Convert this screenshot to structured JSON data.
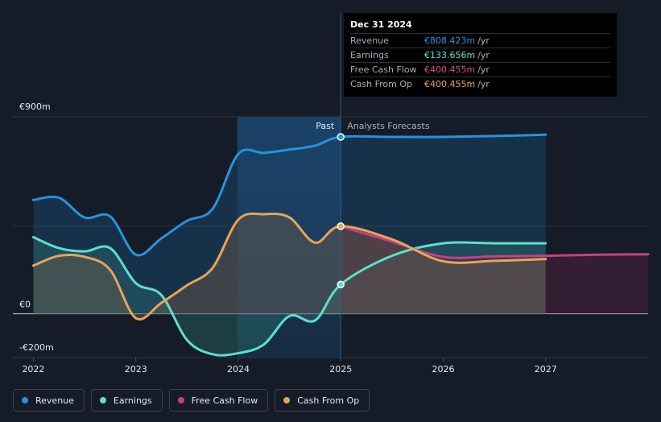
{
  "tooltip": {
    "date": "Dec 31 2024",
    "rows": [
      {
        "label": "Revenue",
        "value": "€808.423m",
        "unit": "/yr",
        "color": "#2394df"
      },
      {
        "label": "Earnings",
        "value": "€133.656m",
        "unit": "/yr",
        "color": "#5ce0cd"
      },
      {
        "label": "Free Cash Flow",
        "value": "€400.455m",
        "unit": "/yr",
        "color": "#c4427e"
      },
      {
        "label": "Cash From Op",
        "value": "€400.455m",
        "unit": "/yr",
        "color": "#e8a35a"
      }
    ]
  },
  "legend": [
    {
      "label": "Revenue",
      "color": "#2394df"
    },
    {
      "label": "Earnings",
      "color": "#5ce0cd"
    },
    {
      "label": "Free Cash Flow",
      "color": "#c4427e"
    },
    {
      "label": "Cash From Op",
      "color": "#e8a35a"
    }
  ],
  "chart_data": {
    "type": "area",
    "title": "",
    "y_labels": [
      {
        "value": 900,
        "text": "€900m"
      },
      {
        "value": 0,
        "text": "€0"
      },
      {
        "value": -200,
        "text": "-€200m"
      }
    ],
    "ylim": [
      -200,
      900
    ],
    "xlim": [
      2021.8,
      2028.0
    ],
    "x_ticks": [
      2022,
      2023,
      2024,
      2025,
      2026,
      2027
    ],
    "past_label": "Past",
    "forecast_label": "Analysts Forecasts",
    "divider_x": 2025.0,
    "highlight_start_x": 2023.99,
    "series": [
      {
        "name": "Revenue",
        "color": "#2394df",
        "points": [
          [
            2022.0,
            520
          ],
          [
            2022.25,
            530
          ],
          [
            2022.5,
            440
          ],
          [
            2022.75,
            445
          ],
          [
            2023.0,
            270
          ],
          [
            2023.25,
            345
          ],
          [
            2023.5,
            425
          ],
          [
            2023.75,
            480
          ],
          [
            2024.0,
            730
          ],
          [
            2024.25,
            735
          ],
          [
            2024.5,
            750
          ],
          [
            2024.75,
            768
          ],
          [
            2025.0,
            808
          ],
          [
            2025.5,
            808
          ],
          [
            2026.0,
            808
          ],
          [
            2026.5,
            812
          ],
          [
            2027.0,
            818
          ]
        ]
      },
      {
        "name": "Earnings",
        "color": "#5ce0cd",
        "points": [
          [
            2022.0,
            350
          ],
          [
            2022.25,
            300
          ],
          [
            2022.5,
            285
          ],
          [
            2022.75,
            300
          ],
          [
            2023.0,
            140
          ],
          [
            2023.25,
            85
          ],
          [
            2023.5,
            -120
          ],
          [
            2023.75,
            -185
          ],
          [
            2024.0,
            -180
          ],
          [
            2024.25,
            -140
          ],
          [
            2024.5,
            -10
          ],
          [
            2024.75,
            -30
          ],
          [
            2025.0,
            134
          ],
          [
            2025.5,
            265
          ],
          [
            2026.0,
            322
          ],
          [
            2026.5,
            322
          ],
          [
            2027.0,
            322
          ]
        ]
      },
      {
        "name": "Free Cash Flow",
        "color": "#c4427e",
        "points": [
          [
            2025.0,
            400
          ],
          [
            2025.5,
            330
          ],
          [
            2026.0,
            260
          ],
          [
            2026.5,
            262
          ],
          [
            2027.0,
            265
          ],
          [
            2027.5,
            270
          ],
          [
            2028.0,
            272
          ]
        ]
      },
      {
        "name": "Cash From Op",
        "color": "#e8a35a",
        "points": [
          [
            2022.0,
            220
          ],
          [
            2022.25,
            265
          ],
          [
            2022.5,
            260
          ],
          [
            2022.75,
            200
          ],
          [
            2023.0,
            -20
          ],
          [
            2023.25,
            50
          ],
          [
            2023.5,
            130
          ],
          [
            2023.75,
            210
          ],
          [
            2024.0,
            430
          ],
          [
            2024.25,
            455
          ],
          [
            2024.5,
            440
          ],
          [
            2024.75,
            325
          ],
          [
            2025.0,
            400
          ],
          [
            2025.5,
            340
          ],
          [
            2026.0,
            240
          ],
          [
            2026.5,
            242
          ],
          [
            2027.0,
            250
          ]
        ]
      }
    ],
    "markers": [
      {
        "series": "Revenue",
        "x": 2025.0,
        "y": 808
      },
      {
        "series": "Cash From Op",
        "x": 2025.0,
        "y": 400
      },
      {
        "series": "Earnings",
        "x": 2025.0,
        "y": 134
      }
    ]
  }
}
